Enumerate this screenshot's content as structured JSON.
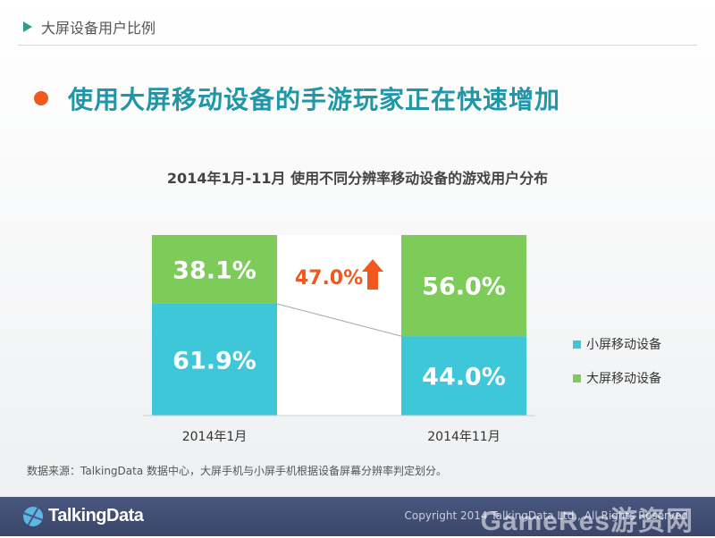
{
  "section": {
    "title": "大屏设备用户比例"
  },
  "headline": "使用大屏移动设备的手游玩家正在快速增加",
  "chart_data": {
    "type": "bar",
    "stacked": true,
    "title": "2014年1月-11月 使用不同分辨率移动设备的游戏用户分布",
    "categories": [
      "2014年1月",
      "2014年11月"
    ],
    "series": [
      {
        "name": "小屏移动设备",
        "values": [
          61.9,
          44.0
        ],
        "labels": [
          "61.9%",
          "44.0%"
        ],
        "color": "#3ec6d9"
      },
      {
        "name": "大屏移动设备",
        "values": [
          38.1,
          56.0
        ],
        "labels": [
          "38.1%",
          "56.0%"
        ],
        "color": "#7dcc5a"
      }
    ],
    "annotation": {
      "label": "47.0%",
      "color": "#f0581e"
    },
    "ylim": [
      0,
      100
    ],
    "legend": "right"
  },
  "source_note": "数据来源：TalkingData 数据中心，大屏手机与小屏手机根据设备屏幕分辨率判定划分。",
  "footer": {
    "logo": "TalkingData",
    "copyright": "Copyright 2014 TalkingData Ltd., All Rights Reserved",
    "watermark": "GameRes游资网"
  }
}
